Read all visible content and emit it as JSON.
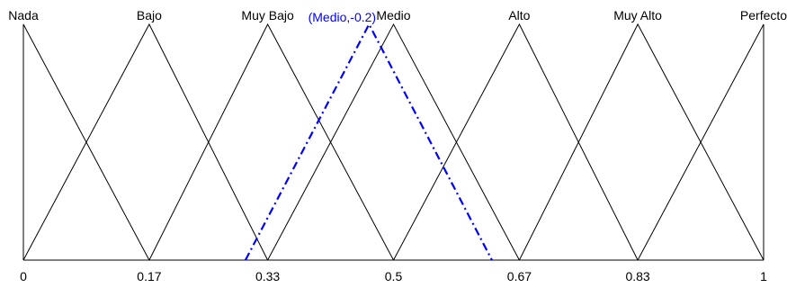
{
  "chart_data": {
    "type": "line",
    "description_kind": "triangular membership functions (2-tuple linguistic term set)",
    "x_ticks": [
      "0",
      "0.17",
      "0.33",
      "0.5",
      "0.67",
      "0.83",
      "1"
    ],
    "terms": [
      {
        "label": "Nada",
        "a": 0.0,
        "b": 0.0,
        "c": 0.17
      },
      {
        "label": "Bajo",
        "a": 0.0,
        "b": 0.17,
        "c": 0.33
      },
      {
        "label": "Muy Bajo",
        "a": 0.17,
        "b": 0.33,
        "c": 0.5
      },
      {
        "label": "Medio",
        "a": 0.33,
        "b": 0.5,
        "c": 0.67
      },
      {
        "label": "Alto",
        "a": 0.5,
        "b": 0.67,
        "c": 0.83
      },
      {
        "label": "Muy Alto",
        "a": 0.67,
        "b": 0.83,
        "c": 1.0
      },
      {
        "label": "Perfecto",
        "a": 0.83,
        "b": 1.0,
        "c": 1.0
      }
    ],
    "highlight": {
      "label": "(Medio,-0.2)",
      "a": 0.3,
      "b": 0.467,
      "c": 0.633,
      "color": "#0000ff",
      "style": "dash-dot"
    },
    "xlim": [
      0,
      1
    ],
    "ylim": [
      0,
      1
    ],
    "line_color": "#000000"
  }
}
